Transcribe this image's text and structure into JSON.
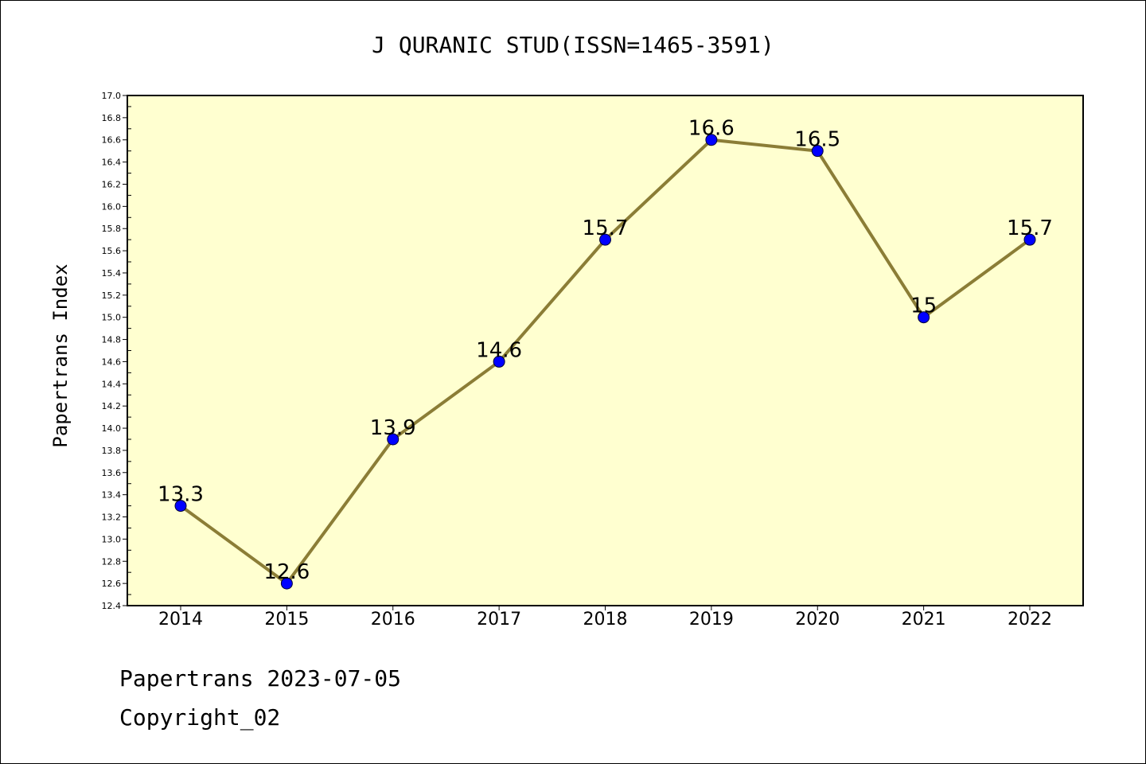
{
  "chart_data": {
    "type": "line",
    "title": "J QURANIC STUD(ISSN=1465-3591)",
    "ylabel": "Papertrans Index",
    "xlabel": "",
    "categories": [
      "2014",
      "2015",
      "2016",
      "2017",
      "2018",
      "2019",
      "2020",
      "2021",
      "2022"
    ],
    "series": [
      {
        "values": [
          13.3,
          12.6,
          13.9,
          14.6,
          15.7,
          16.6,
          16.5,
          15.0,
          15.7
        ],
        "data_labels": [
          "13.3",
          "12.6",
          "13.9",
          "14.6",
          "15.7",
          "16.6",
          "16.5",
          "15",
          "15.7"
        ]
      }
    ],
    "ylim": [
      12.4,
      17.0
    ],
    "yticks": [
      12.4,
      12.6,
      12.8,
      13.0,
      13.2,
      13.4,
      13.6,
      13.8,
      14.0,
      14.2,
      14.4,
      14.6,
      14.8,
      15.0,
      15.2,
      15.4,
      15.6,
      15.8,
      16.0,
      16.2,
      16.4,
      16.6,
      16.8,
      17.0
    ],
    "grid": false,
    "legend": "none",
    "colors": {
      "plot_background": "#ffffd0",
      "line": "#8b7d36",
      "marker": "#0000ff"
    }
  },
  "footer": {
    "line1": "Papertrans 2023-07-05",
    "line2": "Copyright_02"
  }
}
